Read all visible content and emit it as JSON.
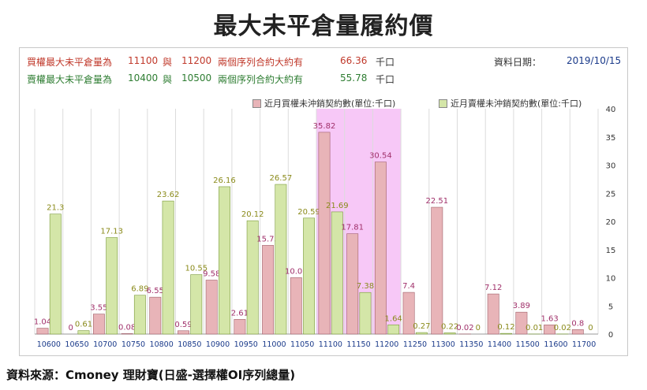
{
  "title": "最大未平倉量履約價",
  "info": {
    "put_row": {
      "label": "買權最大未平倉量為",
      "strike1": "11100",
      "sep": "與",
      "strike2": "11200",
      "desc": "兩個序列合約大約有",
      "value": "66.36",
      "unit": "千口"
    },
    "call_row": {
      "label": "賣權最大未平倉量為",
      "strike1": "10400",
      "sep": "與",
      "strike2": "10500",
      "desc": "兩個序列合約大約有",
      "value": "55.78",
      "unit": "千口"
    },
    "date_label": "資料日期：",
    "date_value": "2019/10/15"
  },
  "legend": {
    "series1": "近月買權未沖銷契約數(單位:千口)",
    "series2": "近月賣權未沖銷契約數(單位:千口)"
  },
  "footer": "資料來源：Cmoney 理財寶(日盛-選擇權OI序列總量)",
  "colors": {
    "buy": "#e8b4b8",
    "buy_stroke": "#a0606a",
    "buy_label": "#a0306a",
    "sell": "#d4e6a8",
    "sell_stroke": "#7a9a3a",
    "sell_label": "#8a8a1a",
    "highlight": "#f7c8f7",
    "axis_label": "#1a3a8a"
  },
  "chart_data": {
    "type": "bar",
    "categories": [
      "10600",
      "10650",
      "10700",
      "10750",
      "10800",
      "10850",
      "10900",
      "10950",
      "11000",
      "11050",
      "11100",
      "11150",
      "11200",
      "11250",
      "11300",
      "11350",
      "11400",
      "11500",
      "11600",
      "11700"
    ],
    "series": [
      {
        "name": "近月買權未沖銷契約數(單位:千口)",
        "values": [
          1.04,
          0,
          3.55,
          0.08,
          6.55,
          0.59,
          9.58,
          2.61,
          15.75,
          10.01,
          35.82,
          17.81,
          30.54,
          7.4,
          22.51,
          0.02,
          7.12,
          3.89,
          1.63,
          0.8
        ]
      },
      {
        "name": "近月賣權未沖銷契約數(單位:千口)",
        "values": [
          21.3,
          0.61,
          17.13,
          6.89,
          23.62,
          10.55,
          26.16,
          20.12,
          26.57,
          20.59,
          21.69,
          7.38,
          1.64,
          0.27,
          0.22,
          0,
          0.12,
          0.01,
          0.02,
          0
        ]
      }
    ],
    "yticks": [
      0,
      5,
      10,
      15,
      20,
      25,
      30,
      35,
      40
    ],
    "ylim": [
      0,
      40
    ],
    "highlight_range": [
      "11100",
      "11200"
    ]
  }
}
